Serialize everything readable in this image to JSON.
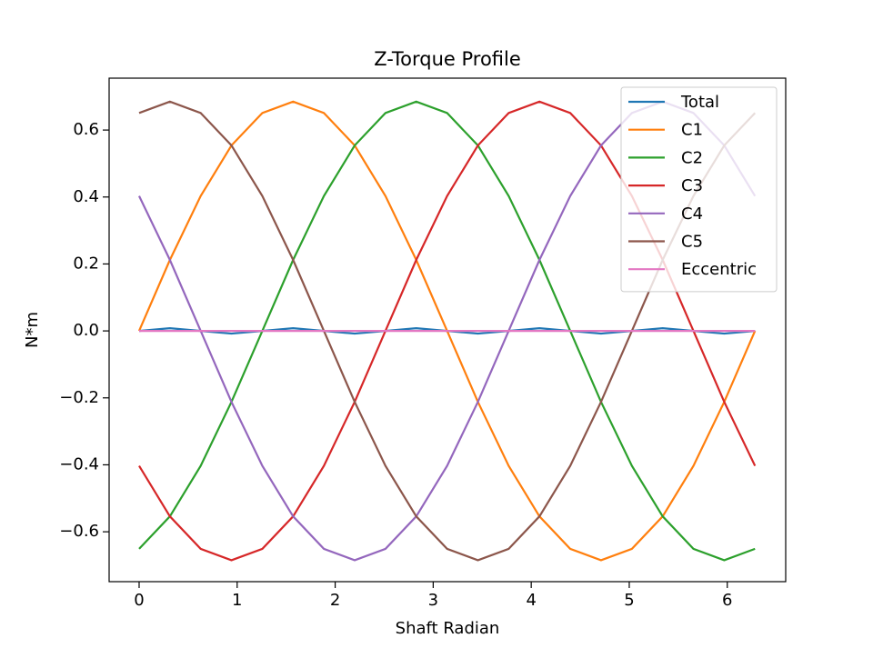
{
  "chart_data": {
    "type": "line",
    "title": "Z-Torque Profile",
    "x_label": "Shaft Radian",
    "y_label": "N*m",
    "x": [
      0,
      0.314,
      0.628,
      0.942,
      1.257,
      1.571,
      1.885,
      2.199,
      2.513,
      2.827,
      3.142,
      3.456,
      3.77,
      4.084,
      4.398,
      4.712,
      5.027,
      5.341,
      5.655,
      5.969,
      6.283
    ],
    "series": [
      {
        "name": "Total",
        "color": "#1f77b4",
        "values": [
          0,
          0.008,
          0,
          -0.008,
          0,
          0.008,
          0,
          -0.008,
          0,
          0.008,
          0,
          -0.008,
          0,
          0.008,
          0,
          -0.008,
          0,
          0.008,
          0,
          -0.008,
          0
        ]
      },
      {
        "name": "C1",
        "color": "#ff7f0e",
        "values": [
          0,
          0.212,
          0.403,
          0.554,
          0.651,
          0.685,
          0.651,
          0.554,
          0.403,
          0.212,
          0,
          -0.212,
          -0.403,
          -0.554,
          -0.651,
          -0.685,
          -0.651,
          -0.554,
          -0.403,
          -0.212,
          0
        ]
      },
      {
        "name": "C2",
        "color": "#2ca02c",
        "values": [
          -0.651,
          -0.554,
          -0.403,
          -0.212,
          0,
          0.212,
          0.403,
          0.554,
          0.651,
          0.685,
          0.651,
          0.554,
          0.403,
          0.212,
          0,
          -0.212,
          -0.403,
          -0.554,
          -0.651,
          -0.685,
          -0.651
        ]
      },
      {
        "name": "C3",
        "color": "#d62728",
        "values": [
          -0.403,
          -0.554,
          -0.651,
          -0.685,
          -0.651,
          -0.554,
          -0.403,
          -0.212,
          0,
          0.212,
          0.403,
          0.554,
          0.651,
          0.685,
          0.651,
          0.554,
          0.403,
          0.212,
          0,
          -0.212,
          -0.403
        ]
      },
      {
        "name": "C4",
        "color": "#9467bd",
        "values": [
          0.403,
          0.212,
          0,
          -0.212,
          -0.403,
          -0.554,
          -0.651,
          -0.685,
          -0.651,
          -0.554,
          -0.403,
          -0.212,
          0,
          0.212,
          0.403,
          0.554,
          0.651,
          0.685,
          0.651,
          0.554,
          0.403
        ]
      },
      {
        "name": "C5",
        "color": "#8c564b",
        "values": [
          0.651,
          0.685,
          0.651,
          0.554,
          0.403,
          0.212,
          0,
          -0.212,
          -0.403,
          -0.554,
          -0.651,
          -0.685,
          -0.651,
          -0.554,
          -0.403,
          -0.212,
          0,
          0.212,
          0.403,
          0.554,
          0.651
        ]
      },
      {
        "name": "Eccentric",
        "color": "#e377c2",
        "values": [
          0,
          0,
          0,
          0,
          0,
          0,
          0,
          0,
          0,
          0,
          0,
          0,
          0,
          0,
          0,
          0,
          0,
          0,
          0,
          0,
          0
        ]
      }
    ],
    "xlim": [
      -0.306,
      6.596
    ],
    "ylim": [
      -0.749,
      0.755
    ],
    "xticks": [
      0,
      1,
      2,
      3,
      4,
      5,
      6
    ],
    "yticks": [
      {
        "value": -0.6,
        "label": "−0.6"
      },
      {
        "value": -0.4,
        "label": "−0.4"
      },
      {
        "value": -0.2,
        "label": "−0.2"
      },
      {
        "value": 0,
        "label": "0.0"
      },
      0.2,
      0.4,
      0.6
    ],
    "legend": "upper right",
    "grid": false
  }
}
